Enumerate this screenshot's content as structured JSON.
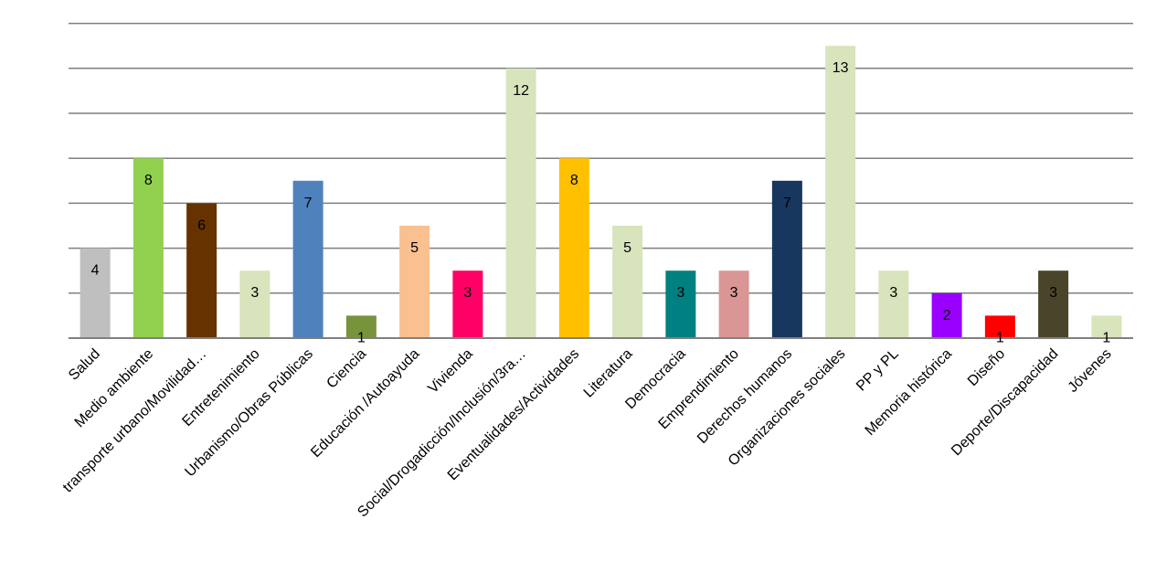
{
  "chart_data": {
    "type": "bar",
    "title": "",
    "xlabel": "",
    "ylabel": "",
    "ylim": [
      0,
      14
    ],
    "grid": true,
    "categories": [
      "Salud",
      "Medio ambiente",
      "transporte urbano/Movilidad…",
      "Entretenimiento",
      "Urbanismo/Obras Públicas",
      "Ciencia",
      "Educación /Autoayuda",
      "Vivienda",
      "Social/Drogadicción/Inclusión/3ra…",
      "Eventualidades/Actividades",
      "Literatura",
      "Democracia",
      "Emprendimiento",
      "Derechos humanos",
      "Organizaciones sociales",
      "PP y PL",
      "Memoria histórica",
      "Diseño",
      "Deporte/Discapacidad",
      "Jóvenes"
    ],
    "values": [
      4,
      8,
      6,
      3,
      7,
      1,
      5,
      3,
      12,
      8,
      5,
      3,
      3,
      7,
      13,
      3,
      2,
      1,
      3,
      1
    ],
    "colors": [
      "#bfbfbf",
      "#92d050",
      "#663300",
      "#d7e4bc",
      "#4f81bd",
      "#77933c",
      "#fac090",
      "#ff0066",
      "#d7e4bc",
      "#ffc000",
      "#d7e4bc",
      "#008080",
      "#d99694",
      "#17375e",
      "#d7e4bc",
      "#d7e4bc",
      "#9900ff",
      "#ff0000",
      "#4a452a",
      "#d7e4bc"
    ],
    "gridline_color": "#7f7f7f",
    "axis_color": "#7f7f7f"
  }
}
